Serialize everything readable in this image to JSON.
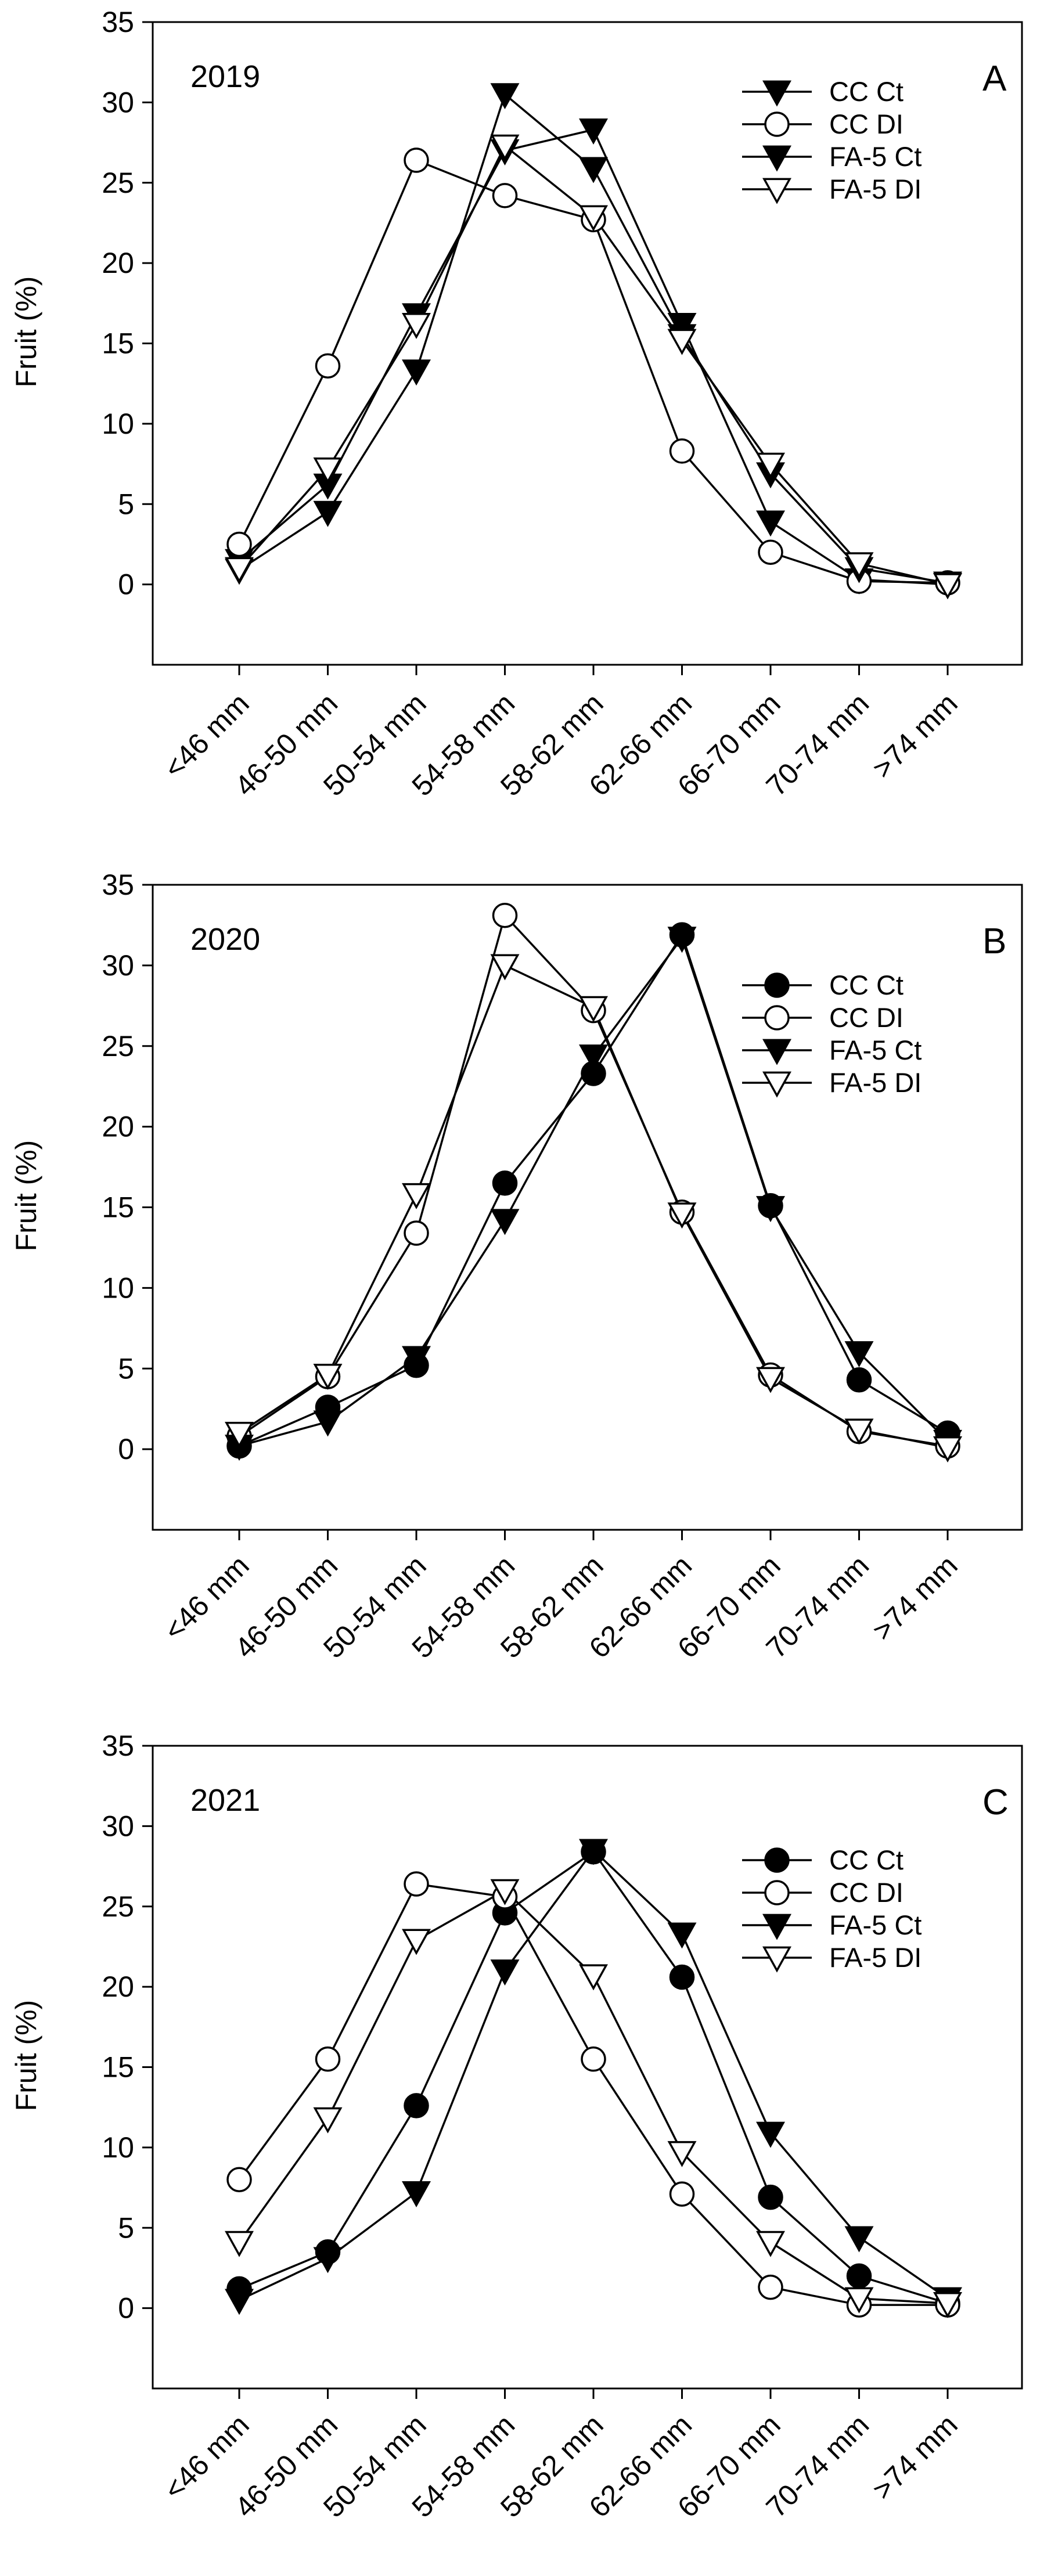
{
  "chart_data": [
    {
      "type": "line",
      "panel_label": "A",
      "year_label": "2019",
      "title": "",
      "xlabel": "",
      "ylabel": "Fruit (%)",
      "ylim": [
        -5,
        35
      ],
      "yticks": [
        0,
        5,
        10,
        15,
        20,
        25,
        30,
        35
      ],
      "categories": [
        "<46 mm",
        "46-50 mm",
        "50-54 mm",
        "54-58 mm",
        "58-62 mm",
        "62-66 mm",
        "66-70 mm",
        "70-74 mm",
        ">74 mm"
      ],
      "legend_position": "top-right",
      "series": [
        {
          "name": "CC Ct",
          "marker": "triangle-down-filled",
          "values": [
            1.5,
            6.2,
            16.8,
            27.0,
            28.3,
            16.2,
            3.9,
            0.3,
            0.0
          ]
        },
        {
          "name": "CC DI",
          "marker": "circle-open",
          "values": [
            2.5,
            13.6,
            26.4,
            24.2,
            22.7,
            8.3,
            2.0,
            0.2,
            0.1
          ]
        },
        {
          "name": "FA-5 Ct",
          "marker": "triangle-down-filled",
          "values": [
            0.9,
            4.5,
            13.3,
            30.5,
            25.9,
            15.5,
            6.9,
            1.0,
            0.1
          ]
        },
        {
          "name": "FA-5 DI",
          "marker": "triangle-down-open",
          "values": [
            1.0,
            7.2,
            16.2,
            27.3,
            22.9,
            15.2,
            7.5,
            1.3,
            0.0
          ]
        }
      ]
    },
    {
      "type": "line",
      "panel_label": "B",
      "year_label": "2020",
      "title": "",
      "xlabel": "",
      "ylabel": "Fruit (%)",
      "ylim": [
        -5,
        35
      ],
      "yticks": [
        0,
        5,
        10,
        15,
        20,
        25,
        30,
        35
      ],
      "categories": [
        "<46 mm",
        "46-50 mm",
        "50-54 mm",
        "54-58 mm",
        "58-62 mm",
        "62-66 mm",
        "66-70 mm",
        "70-74 mm",
        ">74 mm"
      ],
      "legend_position": "top-right",
      "series": [
        {
          "name": "CC Ct",
          "marker": "circle-filled",
          "values": [
            0.2,
            2.6,
            5.2,
            16.5,
            23.3,
            31.9,
            15.1,
            4.3,
            1.0
          ]
        },
        {
          "name": "CC DI",
          "marker": "circle-open",
          "values": [
            0.8,
            4.5,
            13.4,
            33.1,
            27.2,
            14.7,
            4.6,
            1.1,
            0.2
          ]
        },
        {
          "name": "FA-5 Ct",
          "marker": "triangle-down-filled",
          "values": [
            0.2,
            1.7,
            5.7,
            14.2,
            24.4,
            31.7,
            15.0,
            6.0,
            0.5
          ]
        },
        {
          "name": "FA-5 DI",
          "marker": "triangle-down-open",
          "values": [
            1.0,
            4.6,
            15.8,
            30.0,
            27.4,
            14.6,
            4.4,
            1.2,
            0.1
          ]
        }
      ]
    },
    {
      "type": "line",
      "panel_label": "C",
      "year_label": "2021",
      "title": "",
      "xlabel": "",
      "ylabel": "Fruit (%)",
      "ylim": [
        -5,
        35
      ],
      "yticks": [
        0,
        5,
        10,
        15,
        20,
        25,
        30,
        35
      ],
      "categories": [
        "<46 mm",
        "46-50 mm",
        "50-54 mm",
        "54-58 mm",
        "58-62 mm",
        "62-66 mm",
        "66-70 mm",
        "70-74 mm",
        ">74 mm"
      ],
      "legend_position": "top-right",
      "series": [
        {
          "name": "CC Ct",
          "marker": "circle-filled",
          "values": [
            1.2,
            3.5,
            12.6,
            24.6,
            28.4,
            20.6,
            6.9,
            2.0,
            0.3
          ]
        },
        {
          "name": "CC DI",
          "marker": "circle-open",
          "values": [
            8.0,
            15.5,
            26.4,
            25.6,
            15.5,
            7.1,
            1.3,
            0.2,
            0.2
          ]
        },
        {
          "name": "FA-5 Ct",
          "marker": "triangle-down-filled",
          "values": [
            0.5,
            3.1,
            7.2,
            21.0,
            28.5,
            23.3,
            10.9,
            4.4,
            0.6
          ]
        },
        {
          "name": "FA-5 DI",
          "marker": "triangle-down-open",
          "values": [
            4.1,
            11.8,
            22.9,
            26.0,
            20.7,
            9.7,
            4.1,
            0.6,
            0.3
          ]
        }
      ]
    }
  ]
}
